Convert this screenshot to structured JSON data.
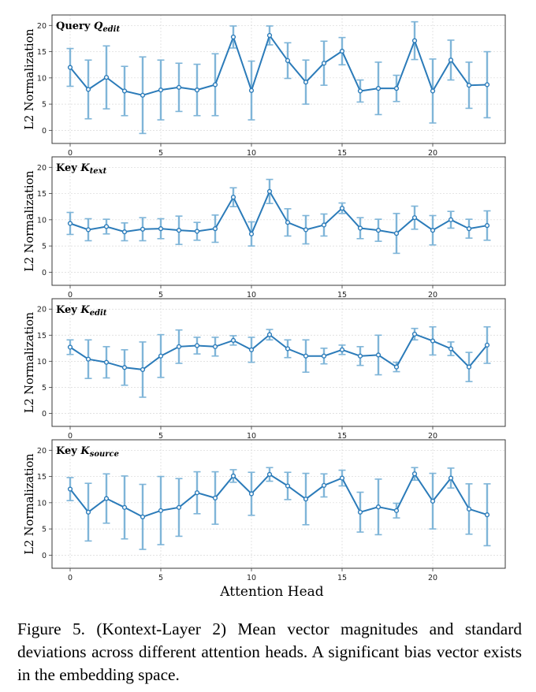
{
  "figure": {
    "x_axis_label": "Attention Head",
    "caption": "Figure 5. (Kontext-Layer 2) Mean vector magnitudes and standard deviations across different attention heads. A significant bias vector exists in the embedding space."
  },
  "colors": {
    "line": "#2b7bb9",
    "error_bar": "#7fb5d8",
    "grid": "#d8d8d8",
    "frame": "#3a3a3a"
  },
  "chart_data": [
    {
      "type": "line",
      "title": "Query",
      "title_symbol": "Q",
      "title_subscript": "edit",
      "xlabel": "",
      "ylabel": "L2 Normalization",
      "x": [
        0,
        1,
        2,
        3,
        4,
        5,
        6,
        7,
        8,
        9,
        10,
        11,
        12,
        13,
        14,
        15,
        16,
        17,
        18,
        19,
        20,
        21,
        22,
        23
      ],
      "values": [
        12.0,
        7.8,
        10.1,
        7.5,
        6.7,
        7.7,
        8.2,
        7.7,
        8.7,
        17.8,
        7.6,
        18.1,
        13.3,
        9.2,
        12.8,
        15.1,
        7.5,
        8.0,
        8.0,
        17.1,
        7.5,
        13.4,
        8.6,
        8.7
      ],
      "errors": [
        3.6,
        5.6,
        6.0,
        4.7,
        7.3,
        5.7,
        4.6,
        4.9,
        5.9,
        2.1,
        5.6,
        1.8,
        3.4,
        4.2,
        4.2,
        2.6,
        2.1,
        5.0,
        2.5,
        3.6,
        6.1,
        3.8,
        4.4,
        6.3
      ],
      "xticks": [
        0,
        5,
        10,
        15,
        20
      ],
      "yticks": [
        0,
        5,
        10,
        15,
        20
      ],
      "xlim": [
        -1,
        24
      ],
      "ylim": [
        -2.5,
        22
      ]
    },
    {
      "type": "line",
      "title": "Key",
      "title_symbol": "K",
      "title_subscript": "text",
      "xlabel": "",
      "ylabel": "L2 Normalization",
      "x": [
        0,
        1,
        2,
        3,
        4,
        5,
        6,
        7,
        8,
        9,
        10,
        11,
        12,
        13,
        14,
        15,
        16,
        17,
        18,
        19,
        20,
        21,
        22,
        23
      ],
      "values": [
        9.3,
        8.1,
        8.7,
        7.7,
        8.2,
        8.3,
        8.0,
        7.8,
        8.3,
        14.3,
        7.3,
        15.4,
        9.5,
        8.1,
        9.0,
        12.2,
        8.4,
        8.0,
        7.4,
        10.4,
        8.0,
        10.0,
        8.3,
        8.9
      ],
      "errors": [
        2.1,
        2.1,
        1.4,
        1.7,
        2.2,
        1.9,
        2.7,
        1.7,
        2.6,
        1.8,
        2.3,
        2.3,
        2.6,
        2.7,
        2.1,
        1.0,
        2.0,
        2.1,
        3.8,
        2.2,
        2.8,
        1.6,
        1.8,
        2.8
      ],
      "xticks": [
        0,
        5,
        10,
        15,
        20
      ],
      "yticks": [
        0,
        5,
        10,
        15,
        20
      ],
      "xlim": [
        -1,
        24
      ],
      "ylim": [
        -2.5,
        22
      ]
    },
    {
      "type": "line",
      "title": "Key",
      "title_symbol": "K",
      "title_subscript": "edit",
      "xlabel": "",
      "ylabel": "L2 Normalization",
      "x": [
        0,
        1,
        2,
        3,
        4,
        5,
        6,
        7,
        8,
        9,
        10,
        11,
        12,
        13,
        14,
        15,
        16,
        17,
        18,
        19,
        20,
        21,
        22,
        23
      ],
      "values": [
        12.7,
        10.4,
        9.8,
        8.8,
        8.4,
        11.0,
        12.8,
        13.0,
        12.8,
        14.0,
        12.2,
        15.1,
        12.4,
        11.0,
        11.0,
        12.2,
        11.0,
        11.2,
        8.9,
        15.2,
        13.9,
        12.4,
        8.9,
        13.1
      ],
      "errors": [
        1.4,
        3.7,
        3.0,
        3.4,
        5.3,
        4.1,
        3.2,
        1.6,
        1.8,
        0.9,
        2.4,
        1.0,
        1.7,
        3.1,
        1.5,
        0.9,
        1.8,
        3.8,
        0.9,
        1.1,
        2.7,
        1.3,
        2.8,
        3.5
      ],
      "xticks": [
        0,
        5,
        10,
        15,
        20
      ],
      "yticks": [
        0,
        5,
        10,
        15,
        20
      ],
      "xlim": [
        -1,
        24
      ],
      "ylim": [
        -2.5,
        22
      ]
    },
    {
      "type": "line",
      "title": "Key",
      "title_symbol": "K",
      "title_subscript": "source",
      "xlabel": "Attention Head",
      "ylabel": "L2 Normalization",
      "x": [
        0,
        1,
        2,
        3,
        4,
        5,
        6,
        7,
        8,
        9,
        10,
        11,
        12,
        13,
        14,
        15,
        16,
        17,
        18,
        19,
        20,
        21,
        22,
        23
      ],
      "values": [
        12.6,
        8.2,
        10.8,
        9.1,
        7.3,
        8.5,
        9.1,
        11.9,
        10.9,
        15.1,
        11.7,
        15.4,
        13.2,
        10.7,
        13.3,
        14.7,
        8.2,
        9.2,
        8.5,
        15.5,
        10.3,
        14.7,
        8.8,
        7.7
      ],
      "errors": [
        2.2,
        5.5,
        4.7,
        6.0,
        6.2,
        6.5,
        5.5,
        4.0,
        5.0,
        1.2,
        4.1,
        1.3,
        2.6,
        4.9,
        2.2,
        1.5,
        3.8,
        5.3,
        1.4,
        1.2,
        5.3,
        1.9,
        4.8,
        5.9
      ],
      "xticks": [
        0,
        5,
        10,
        15,
        20
      ],
      "yticks": [
        0,
        5,
        10,
        15,
        20
      ],
      "xlim": [
        -1,
        24
      ],
      "ylim": [
        -2.5,
        22
      ]
    }
  ]
}
